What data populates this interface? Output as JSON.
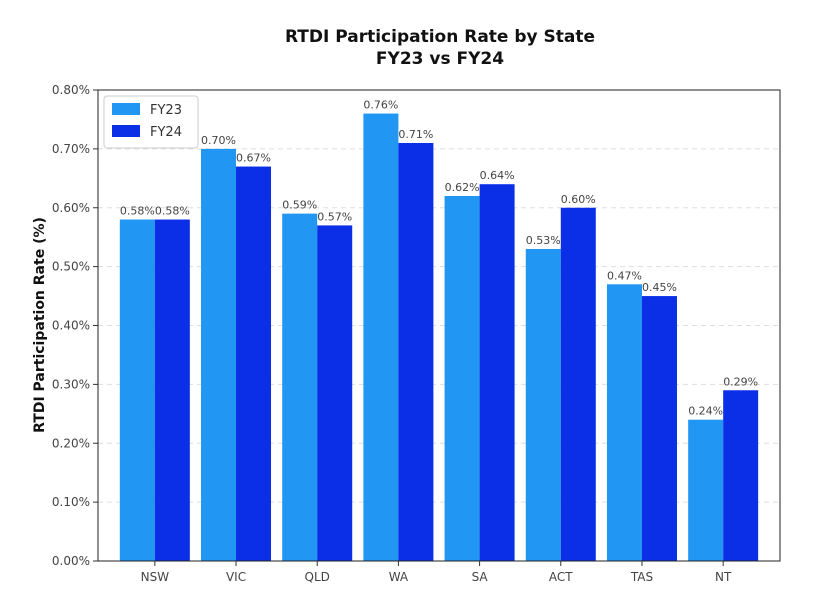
{
  "chart_data": {
    "type": "bar",
    "title_line1": "RTDI Participation Rate by State",
    "title_line2": "FY23 vs FY24",
    "xlabel": "",
    "ylabel": "RTDI Participation Rate (%)",
    "categories": [
      "NSW",
      "VIC",
      "QLD",
      "WA",
      "SA",
      "ACT",
      "TAS",
      "NT"
    ],
    "series": [
      {
        "name": "FY23",
        "color": "#2196F3",
        "values": [
          0.58,
          0.7,
          0.59,
          0.76,
          0.62,
          0.53,
          0.47,
          0.24
        ],
        "labels": [
          "0.58%",
          "0.70%",
          "0.59%",
          "0.76%",
          "0.62%",
          "0.53%",
          "0.47%",
          "0.24%"
        ]
      },
      {
        "name": "FY24",
        "color": "#0A2FE6",
        "values": [
          0.58,
          0.67,
          0.57,
          0.71,
          0.64,
          0.6,
          0.45,
          0.29
        ],
        "labels": [
          "0.58%",
          "0.67%",
          "0.57%",
          "0.71%",
          "0.64%",
          "0.60%",
          "0.45%",
          "0.29%"
        ]
      }
    ],
    "ylim": [
      0,
      0.8
    ],
    "yticks": [
      0,
      0.1,
      0.2,
      0.3,
      0.4,
      0.5,
      0.6,
      0.7,
      0.8
    ],
    "ytick_labels": [
      "0.00%",
      "0.10%",
      "0.20%",
      "0.30%",
      "0.40%",
      "0.50%",
      "0.60%",
      "0.70%",
      "0.80%"
    ],
    "grid": true,
    "legend_position": "top-left"
  }
}
